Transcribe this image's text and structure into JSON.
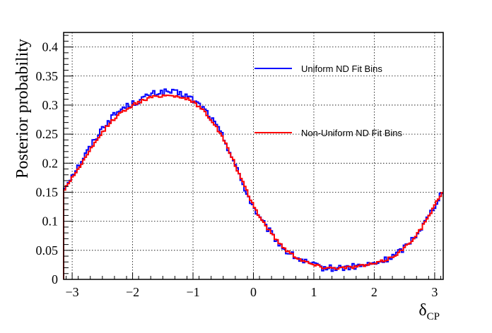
{
  "chart_data": {
    "type": "line",
    "style": "step-histogram",
    "title": "",
    "ylabel": "Posterior probability",
    "xlabel_main": "δ",
    "xlabel_sub": "CP",
    "xlim": [
      -3.14159,
      3.14159
    ],
    "ylim": [
      0,
      0.425
    ],
    "x_ticks": [
      -3,
      -2,
      -1,
      0,
      1,
      2,
      3
    ],
    "x_tick_labels": [
      "−3",
      "−2",
      "−1",
      "0",
      "1",
      "2",
      "3"
    ],
    "y_ticks": [
      0,
      0.05,
      0.1,
      0.15,
      0.2,
      0.25,
      0.3,
      0.35,
      0.4
    ],
    "y_tick_labels": [
      "0",
      "0.05",
      "0.1",
      "0.15",
      "0.2",
      "0.25",
      "0.3",
      "0.35",
      "0.4"
    ],
    "grid": true,
    "legend_position": "top-right",
    "series": [
      {
        "name": "Uniform ND Fit Bins",
        "color": "#0000ff",
        "x": [
          -3.14,
          -3.05,
          -2.9,
          -2.75,
          -2.6,
          -2.45,
          -2.3,
          -2.15,
          -2.0,
          -1.85,
          -1.7,
          -1.55,
          -1.4,
          -1.25,
          -1.1,
          -0.95,
          -0.8,
          -0.65,
          -0.5,
          -0.35,
          -0.2,
          -0.05,
          0.1,
          0.25,
          0.4,
          0.55,
          0.7,
          0.85,
          1.0,
          1.15,
          1.3,
          1.45,
          1.6,
          1.75,
          1.9,
          2.05,
          2.2,
          2.35,
          2.5,
          2.65,
          2.8,
          2.95,
          3.14
        ],
        "y": [
          0.155,
          0.172,
          0.195,
          0.22,
          0.245,
          0.268,
          0.283,
          0.296,
          0.302,
          0.31,
          0.318,
          0.322,
          0.323,
          0.32,
          0.316,
          0.305,
          0.292,
          0.27,
          0.245,
          0.21,
          0.17,
          0.135,
          0.105,
          0.085,
          0.065,
          0.048,
          0.038,
          0.03,
          0.024,
          0.02,
          0.019,
          0.02,
          0.021,
          0.023,
          0.025,
          0.028,
          0.034,
          0.042,
          0.055,
          0.072,
          0.092,
          0.118,
          0.155
        ]
      },
      {
        "name": "Non-Uniform ND Fit Bins",
        "color": "#ff0000",
        "x": [
          -3.14,
          -3.05,
          -2.9,
          -2.75,
          -2.6,
          -2.45,
          -2.3,
          -2.15,
          -2.0,
          -1.85,
          -1.7,
          -1.55,
          -1.4,
          -1.25,
          -1.1,
          -0.95,
          -0.8,
          -0.65,
          -0.5,
          -0.35,
          -0.2,
          -0.05,
          0.1,
          0.25,
          0.4,
          0.55,
          0.7,
          0.85,
          1.0,
          1.15,
          1.3,
          1.45,
          1.6,
          1.75,
          1.9,
          2.05,
          2.2,
          2.35,
          2.5,
          2.65,
          2.8,
          2.95,
          3.14
        ],
        "y": [
          0.152,
          0.168,
          0.19,
          0.214,
          0.238,
          0.26,
          0.277,
          0.29,
          0.3,
          0.307,
          0.313,
          0.316,
          0.317,
          0.315,
          0.311,
          0.302,
          0.288,
          0.268,
          0.242,
          0.209,
          0.172,
          0.138,
          0.108,
          0.086,
          0.066,
          0.05,
          0.039,
          0.031,
          0.025,
          0.021,
          0.02,
          0.02,
          0.021,
          0.023,
          0.025,
          0.028,
          0.034,
          0.042,
          0.054,
          0.071,
          0.091,
          0.117,
          0.153
        ]
      }
    ]
  }
}
